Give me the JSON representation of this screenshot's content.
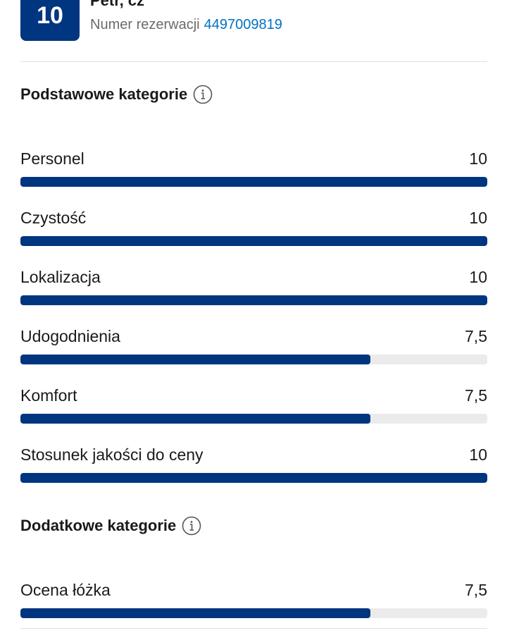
{
  "review": {
    "score": "10",
    "reviewer": "Petr, cz",
    "booking_label": "Numer rezerwacji",
    "booking_number": "4497009819"
  },
  "basic_section": {
    "title": "Podstawowe kategorie",
    "categories": [
      {
        "label": "Personel",
        "value": "10",
        "fraction": 1.0
      },
      {
        "label": "Czystość",
        "value": "10",
        "fraction": 1.0
      },
      {
        "label": "Lokalizacja",
        "value": "10",
        "fraction": 1.0
      },
      {
        "label": "Udogodnienia",
        "value": "7,5",
        "fraction": 0.75
      },
      {
        "label": "Komfort",
        "value": "7,5",
        "fraction": 0.75
      },
      {
        "label": "Stosunek jakości do ceny",
        "value": "10",
        "fraction": 1.0
      }
    ]
  },
  "extra_section": {
    "title": "Dodatkowe kategorie",
    "categories": [
      {
        "label": "Ocena łóżka",
        "value": "7,5",
        "fraction": 0.75
      }
    ]
  },
  "colors": {
    "accent": "#003580",
    "link": "#0071c2",
    "track": "#ebebeb"
  }
}
